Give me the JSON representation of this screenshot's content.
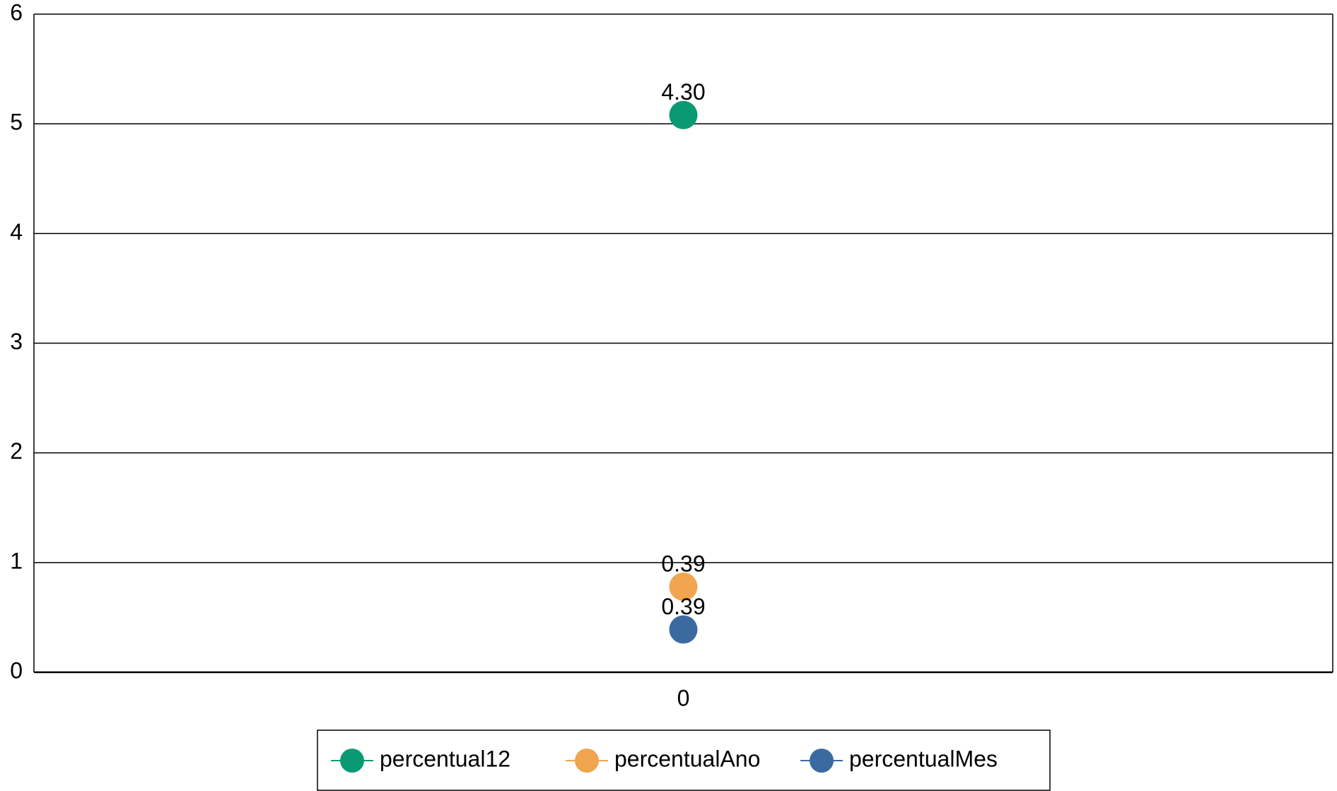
{
  "chart_data": {
    "type": "line",
    "stacked": true,
    "categories": [
      "0"
    ],
    "series": [
      {
        "name": "percentual12",
        "color": "#0a9a73",
        "values": [
          4.3
        ],
        "value_labels": [
          "4.30"
        ]
      },
      {
        "name": "percentualAno",
        "color": "#f0a54e",
        "values": [
          0.39
        ],
        "value_labels": [
          "0.39"
        ]
      },
      {
        "name": "percentualMes",
        "color": "#3b6aa0",
        "values": [
          0.39
        ],
        "value_labels": [
          "0.39"
        ]
      }
    ],
    "ylim": [
      0,
      6
    ],
    "yticks": [
      0,
      1,
      2,
      3,
      4,
      5,
      6
    ],
    "grid": true,
    "legend": "bottom"
  }
}
